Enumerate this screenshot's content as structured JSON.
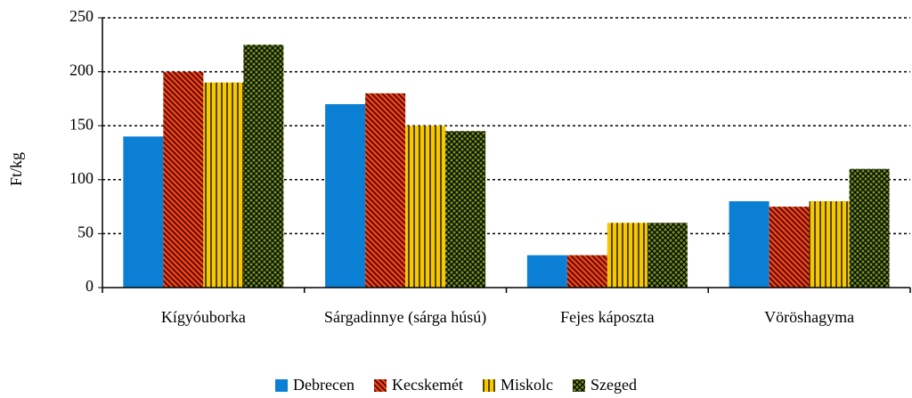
{
  "chart_data": {
    "type": "bar",
    "y_label": "Ft/kg",
    "categories": [
      "Kígyóuborka",
      "Sárgadinnye (sárga húsú)",
      "Fejes káposzta",
      "Vöröshagyma"
    ],
    "series": [
      {
        "name": "Debrecen",
        "color": "#0a7fd4",
        "hatch": "solid",
        "values": [
          140,
          170,
          30,
          80
        ]
      },
      {
        "name": "Kecskemét",
        "color": "#f23c12",
        "hatch": "diagonal",
        "values": [
          200,
          180,
          30,
          75
        ]
      },
      {
        "name": "Miskolc",
        "color": "#f7c800",
        "hatch": "vertical",
        "values": [
          190,
          150,
          60,
          80
        ]
      },
      {
        "name": "Szeged",
        "color": "#6e8c1e",
        "hatch": "cross",
        "values": [
          225,
          145,
          60,
          110
        ]
      }
    ],
    "ylim": [
      0,
      250
    ],
    "yticks": [
      0,
      50,
      100,
      150,
      200,
      250
    ],
    "grid": true,
    "legend": "bottom"
  }
}
